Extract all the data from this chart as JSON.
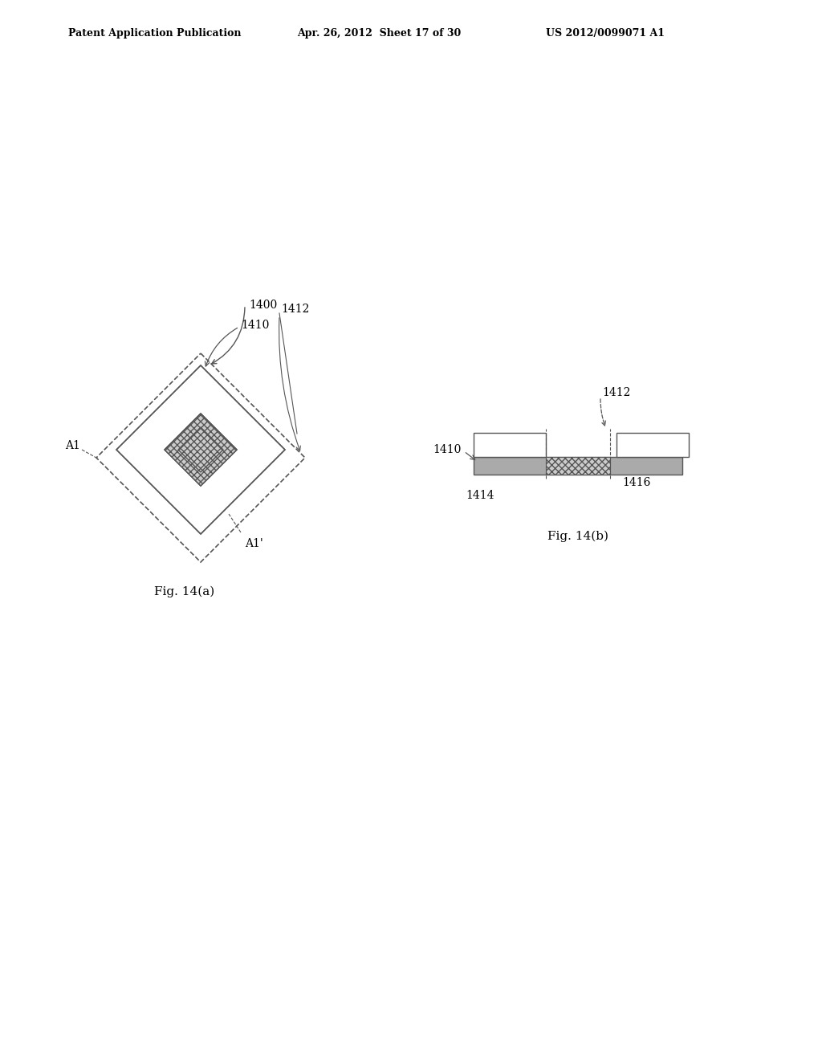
{
  "bg_color": "#ffffff",
  "header_left": "Patent Application Publication",
  "header_mid": "Apr. 26, 2012  Sheet 17 of 30",
  "header_right": "US 2012/0099071 A1",
  "fig_a_label": "Fig. 14(a)",
  "fig_b_label": "Fig. 14(b)",
  "label_1400": "1400",
  "label_1410": "1410",
  "label_1412a": "1412",
  "label_1412b": "1412",
  "label_1414": "1414",
  "label_1416": "1416",
  "label_A1": "A1",
  "label_A1p": "A1'",
  "line_color": "#555555",
  "text_color": "#000000"
}
